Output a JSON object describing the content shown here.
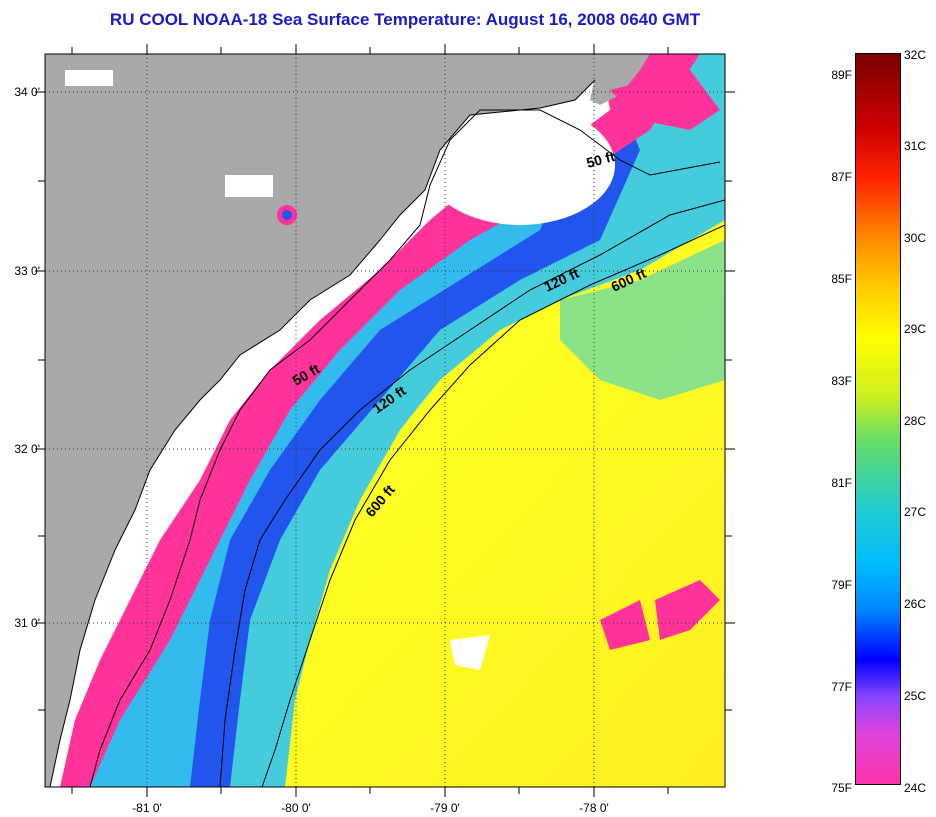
{
  "title": "RU COOL  NOAA-18  Sea Surface Temperature:  August 16, 2008 0640 GMT",
  "map": {
    "latitude_labels": [
      {
        "value": 34.0,
        "text": "34 0'"
      },
      {
        "value": 33.0,
        "text": "33 0'"
      },
      {
        "value": 32.0,
        "text": "32 0'"
      },
      {
        "value": 31.0,
        "text": "31 0'"
      }
    ],
    "longitude_labels": [
      {
        "value": -81.0,
        "text": "-81 0'"
      },
      {
        "value": -80.0,
        "text": "-80 0'"
      },
      {
        "value": -79.0,
        "text": "-79 0'"
      },
      {
        "value": -78.0,
        "text": "-78 0'"
      }
    ],
    "isobaths": [
      {
        "text": "50 ft"
      },
      {
        "text": "120 ft"
      },
      {
        "text": "600 ft"
      },
      {
        "text": "50 ft"
      },
      {
        "text": "120 ft"
      },
      {
        "text": "600 ft"
      }
    ],
    "colors": {
      "land": "#a9a9a9",
      "cloud": "#ffffff",
      "cold": "#ff3399",
      "cool": "#2255ee",
      "mid": "#33ccdd",
      "warm": "#ffff22",
      "title": "#1a1acc"
    }
  },
  "colorbar": {
    "fahrenheit": [
      {
        "value": 89,
        "text": "89F"
      },
      {
        "value": 87,
        "text": "87F"
      },
      {
        "value": 85,
        "text": "85F"
      },
      {
        "value": 83,
        "text": "83F"
      },
      {
        "value": 81,
        "text": "81F"
      },
      {
        "value": 79,
        "text": "79F"
      },
      {
        "value": 77,
        "text": "77F"
      },
      {
        "value": 75,
        "text": "75F"
      }
    ],
    "celsius": [
      {
        "value": 32,
        "text": "32C"
      },
      {
        "value": 31,
        "text": "31C"
      },
      {
        "value": 30,
        "text": "30C"
      },
      {
        "value": 29,
        "text": "29C"
      },
      {
        "value": 28,
        "text": "28C"
      },
      {
        "value": 27,
        "text": "27C"
      },
      {
        "value": 26,
        "text": "26C"
      },
      {
        "value": 25,
        "text": "25C"
      },
      {
        "value": 24,
        "text": "24C"
      }
    ]
  }
}
